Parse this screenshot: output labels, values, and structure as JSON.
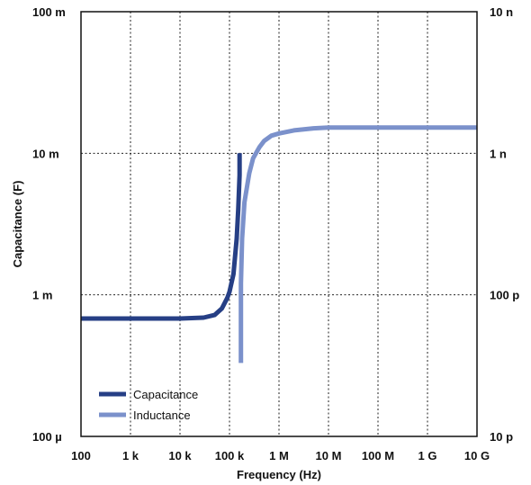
{
  "chart_data": {
    "type": "line",
    "xlabel": "Frequency (Hz)",
    "ylabel": "Capacitance (F)",
    "x_scale": "log",
    "y_scale": "log",
    "xlim": [
      100,
      10000000000
    ],
    "ylim_left": [
      0.0001,
      0.1
    ],
    "ylim_right": [
      1e-11,
      1e-08
    ],
    "x_ticks": [
      {
        "value": 100,
        "label": "100"
      },
      {
        "value": 1000,
        "label": "1 k"
      },
      {
        "value": 10000,
        "label": "10 k"
      },
      {
        "value": 100000,
        "label": "100 k"
      },
      {
        "value": 1000000,
        "label": "1 M"
      },
      {
        "value": 10000000,
        "label": "10 M"
      },
      {
        "value": 100000000,
        "label": "100 M"
      },
      {
        "value": 1000000000,
        "label": "1 G"
      },
      {
        "value": 10000000000,
        "label": "10 G"
      }
    ],
    "y_ticks_left": [
      {
        "value": 0.1,
        "label": "100 m"
      },
      {
        "value": 0.01,
        "label": "10 m"
      },
      {
        "value": 0.001,
        "label": "1 m"
      },
      {
        "value": 0.0001,
        "label": "100 µ"
      }
    ],
    "y_ticks_right": [
      {
        "value": 1e-08,
        "label": "10 n"
      },
      {
        "value": 1e-09,
        "label": "1 n"
      },
      {
        "value": 1e-10,
        "label": "100 p"
      },
      {
        "value": 1e-11,
        "label": "10 p"
      }
    ],
    "grid": true,
    "legend_position": "bottom-left",
    "series": [
      {
        "name": "Capacitance",
        "color": "#263f85",
        "axis": "left",
        "x": [
          100,
          1000,
          10000,
          30000,
          50000,
          70000,
          90000,
          100000,
          120000,
          140000,
          150000,
          160000,
          160000
        ],
        "y": [
          0.00068,
          0.00068,
          0.00068,
          0.00069,
          0.00072,
          0.0008,
          0.00095,
          0.00105,
          0.0014,
          0.0025,
          0.004,
          0.007,
          0.01
        ]
      },
      {
        "name": "Inductance",
        "color": "#7b91cb",
        "axis": "right",
        "x": [
          170000,
          170000,
          180000,
          200000,
          250000,
          300000,
          400000,
          500000,
          700000,
          1000000,
          2000000,
          5000000,
          10000000,
          100000000,
          1000000000,
          10000000000
        ],
        "y": [
          3.3e-11,
          1.2e-10,
          2.5e-10,
          4.5e-10,
          7.2e-10,
          9.2e-10,
          1.1e-09,
          1.22e-09,
          1.33e-09,
          1.38e-09,
          1.45e-09,
          1.5e-09,
          1.52e-09,
          1.52e-09,
          1.52e-09,
          1.52e-09
        ]
      }
    ]
  }
}
